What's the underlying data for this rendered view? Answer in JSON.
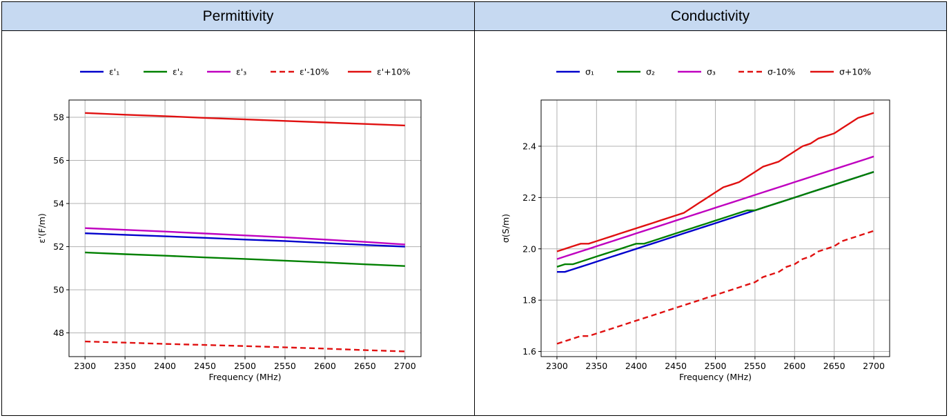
{
  "headers": {
    "left": "Permittivity",
    "right": "Conductivity"
  },
  "chart_data": [
    {
      "type": "line",
      "title": "",
      "xlabel": "Frequency (MHz)",
      "ylabel": "ε'(F/m)",
      "xlim": [
        2280,
        2720
      ],
      "ylim": [
        46.9,
        58.8
      ],
      "xticks": [
        2300,
        2350,
        2400,
        2450,
        2500,
        2550,
        2600,
        2650,
        2700
      ],
      "yticks": [
        48,
        50,
        52,
        54,
        56,
        58
      ],
      "grid": true,
      "legend": "top",
      "x": [
        2300,
        2350,
        2400,
        2450,
        2500,
        2550,
        2600,
        2650,
        2700
      ],
      "series": [
        {
          "name": "ε'₁",
          "color": "#0000cc",
          "dash": false,
          "values": [
            52.62,
            52.55,
            52.48,
            52.41,
            52.33,
            52.26,
            52.17,
            52.08,
            52.0
          ]
        },
        {
          "name": "ε'₂",
          "color": "#008000",
          "dash": false,
          "values": [
            51.73,
            51.65,
            51.58,
            51.5,
            51.43,
            51.35,
            51.27,
            51.18,
            51.1
          ]
        },
        {
          "name": "ε'₃",
          "color": "#bf00bf",
          "dash": false,
          "values": [
            52.86,
            52.78,
            52.7,
            52.61,
            52.52,
            52.43,
            52.33,
            52.22,
            52.1
          ]
        },
        {
          "name": "ε'-10%",
          "color": "#e01010",
          "dash": true,
          "values": [
            47.6,
            47.55,
            47.49,
            47.44,
            47.39,
            47.33,
            47.27,
            47.2,
            47.14
          ]
        },
        {
          "name": "ε'+10%",
          "color": "#e01010",
          "dash": false,
          "values": [
            58.2,
            58.12,
            58.05,
            57.97,
            57.9,
            57.83,
            57.76,
            57.69,
            57.62
          ]
        }
      ]
    },
    {
      "type": "line",
      "title": "",
      "xlabel": "Frequency (MHz)",
      "ylabel": "σ(S/m)",
      "xlim": [
        2280,
        2720
      ],
      "ylim": [
        1.58,
        2.58
      ],
      "xticks": [
        2300,
        2350,
        2400,
        2450,
        2500,
        2550,
        2600,
        2650,
        2700
      ],
      "yticks": [
        1.6,
        1.8,
        2.0,
        2.2,
        2.4
      ],
      "grid": true,
      "legend": "top",
      "x": [
        2300,
        2310,
        2320,
        2330,
        2340,
        2350,
        2360,
        2370,
        2380,
        2390,
        2400,
        2410,
        2420,
        2430,
        2440,
        2450,
        2460,
        2470,
        2480,
        2490,
        2500,
        2510,
        2520,
        2530,
        2540,
        2550,
        2560,
        2570,
        2580,
        2590,
        2600,
        2610,
        2620,
        2630,
        2640,
        2650,
        2660,
        2670,
        2680,
        2690,
        2700
      ],
      "series": [
        {
          "name": "σ₁",
          "color": "#0000cc",
          "dash": false,
          "values": [
            1.91,
            1.91,
            1.92,
            1.93,
            1.94,
            1.95,
            1.96,
            1.97,
            1.98,
            1.99,
            2.0,
            2.01,
            2.02,
            2.03,
            2.04,
            2.05,
            2.06,
            2.07,
            2.08,
            2.09,
            2.1,
            2.11,
            2.12,
            2.13,
            2.14,
            2.15,
            2.16,
            2.17,
            2.18,
            2.19,
            2.2,
            2.21,
            2.22,
            2.23,
            2.24,
            2.25,
            2.26,
            2.27,
            2.28,
            2.29,
            2.3
          ]
        },
        {
          "name": "σ₂",
          "color": "#008000",
          "dash": false,
          "values": [
            1.93,
            1.94,
            1.94,
            1.95,
            1.96,
            1.97,
            1.98,
            1.99,
            2.0,
            2.01,
            2.02,
            2.02,
            2.03,
            2.04,
            2.05,
            2.06,
            2.07,
            2.08,
            2.09,
            2.1,
            2.11,
            2.12,
            2.13,
            2.14,
            2.15,
            2.15,
            2.16,
            2.17,
            2.18,
            2.19,
            2.2,
            2.21,
            2.22,
            2.23,
            2.24,
            2.25,
            2.26,
            2.27,
            2.28,
            2.29,
            2.3
          ]
        },
        {
          "name": "σ₃",
          "color": "#bf00bf",
          "dash": false,
          "values": [
            1.96,
            1.97,
            1.98,
            1.99,
            2.0,
            2.01,
            2.02,
            2.03,
            2.04,
            2.05,
            2.06,
            2.07,
            2.08,
            2.09,
            2.1,
            2.11,
            2.12,
            2.13,
            2.14,
            2.15,
            2.16,
            2.17,
            2.18,
            2.19,
            2.2,
            2.21,
            2.22,
            2.23,
            2.24,
            2.25,
            2.26,
            2.27,
            2.28,
            2.29,
            2.3,
            2.31,
            2.32,
            2.33,
            2.34,
            2.35,
            2.36
          ]
        },
        {
          "name": "σ-10%",
          "color": "#e01010",
          "dash": true,
          "values": [
            1.63,
            1.64,
            1.65,
            1.66,
            1.66,
            1.67,
            1.68,
            1.69,
            1.7,
            1.71,
            1.72,
            1.73,
            1.74,
            1.75,
            1.76,
            1.77,
            1.78,
            1.79,
            1.8,
            1.81,
            1.82,
            1.83,
            1.84,
            1.85,
            1.86,
            1.87,
            1.89,
            1.9,
            1.91,
            1.93,
            1.94,
            1.96,
            1.97,
            1.99,
            2.0,
            2.01,
            2.03,
            2.04,
            2.05,
            2.06,
            2.07
          ]
        },
        {
          "name": "σ+10%",
          "color": "#e01010",
          "dash": false,
          "values": [
            1.99,
            2.0,
            2.01,
            2.02,
            2.02,
            2.03,
            2.04,
            2.05,
            2.06,
            2.07,
            2.08,
            2.09,
            2.1,
            2.11,
            2.12,
            2.13,
            2.14,
            2.16,
            2.18,
            2.2,
            2.22,
            2.24,
            2.25,
            2.26,
            2.28,
            2.3,
            2.32,
            2.33,
            2.34,
            2.36,
            2.38,
            2.4,
            2.41,
            2.43,
            2.44,
            2.45,
            2.47,
            2.49,
            2.51,
            2.52,
            2.53
          ]
        }
      ]
    }
  ]
}
